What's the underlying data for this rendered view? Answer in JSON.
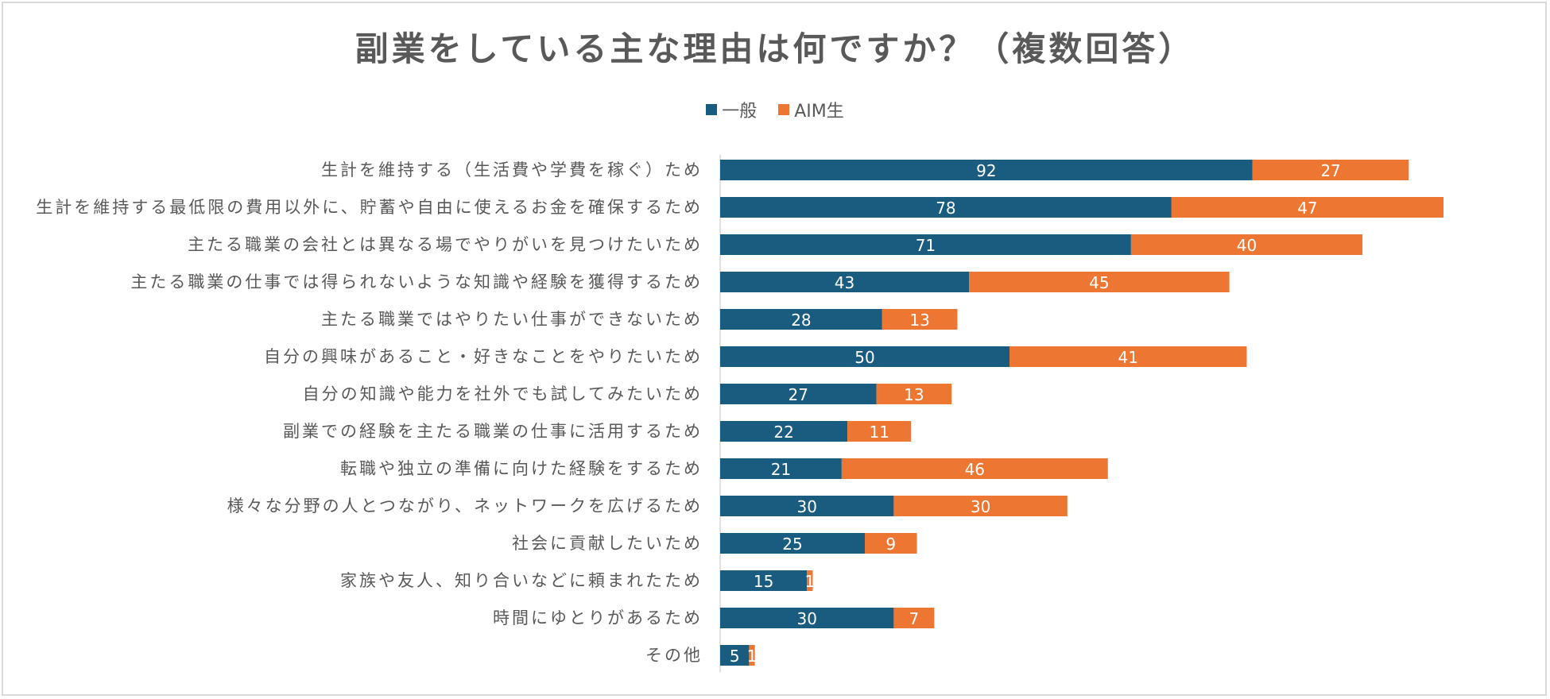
{
  "chart_data": {
    "type": "bar",
    "orientation": "horizontal",
    "stacked": true,
    "title": "副業をしている主な理由は何ですか？（複数回答）",
    "legend_position": "top",
    "categories": [
      "生計を維持する（生活費や学費を稼ぐ）ため",
      "生計を維持する最低限の費用以外に、貯蓄や自由に使えるお金を確保するため",
      "主たる職業の会社とは異なる場でやりがいを見つけたいため",
      "主たる職業の仕事では得られないような知識や経験を獲得するため",
      "主たる職業ではやりたい仕事ができないため",
      "自分の興味があること・好きなことをやりたいため",
      "自分の知識や能力を社外でも試してみたいため",
      "副業での経験を主たる職業の仕事に活用するため",
      "転職や独立の準備に向けた経験をするため",
      "様々な分野の人とつながり、ネットワークを広げるため",
      "社会に貢献したいため",
      "家族や友人、知り合いなどに頼まれたため",
      "時間にゆとりがあるため",
      "その他"
    ],
    "series": [
      {
        "name": "一般",
        "color": "#1a5b80",
        "values": [
          92,
          78,
          71,
          43,
          28,
          50,
          27,
          22,
          21,
          30,
          25,
          15,
          30,
          5
        ]
      },
      {
        "name": "AIM生",
        "color": "#ed7632",
        "values": [
          27,
          47,
          40,
          45,
          13,
          41,
          13,
          11,
          46,
          30,
          9,
          1,
          7,
          1
        ]
      }
    ],
    "xlabel": "",
    "ylabel": "",
    "grid": false,
    "axis_line_color": "#d9d9d9",
    "label_color": "#595959"
  }
}
